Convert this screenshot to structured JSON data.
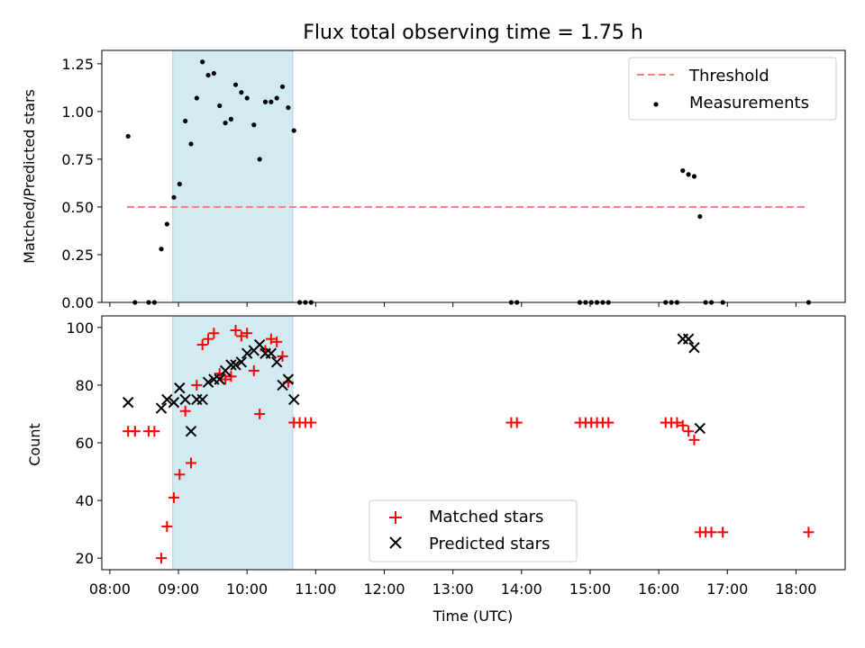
{
  "title": "Flux total observing time = 1.75 h",
  "xlabel": "Time (UTC)",
  "x_ticks": [
    "08:00",
    "09:00",
    "10:00",
    "11:00",
    "12:00",
    "13:00",
    "14:00",
    "15:00",
    "16:00",
    "17:00",
    "18:00"
  ],
  "chart_data": [
    {
      "type": "scatter",
      "ylabel": "Matched/Predicted stars",
      "xlim": [
        "07:53",
        "18:43"
      ],
      "ylim": [
        0,
        1.32
      ],
      "y_ticks": [
        "0.00",
        "0.25",
        "0.50",
        "0.75",
        "1.00",
        "1.25"
      ],
      "legend": {
        "placement": "top-right",
        "entries": [
          "Threshold",
          "Measurements"
        ]
      },
      "shaded_region": {
        "x": [
          "08:55",
          "10:40"
        ],
        "color": "#add8e6"
      },
      "threshold": {
        "name": "Threshold",
        "y": 0.5,
        "x": [
          "08:15",
          "18:10"
        ],
        "color": "#ff7f7f"
      },
      "series": [
        {
          "name": "Measurements",
          "color": "#000000",
          "points": [
            [
              "08:16",
              0.87
            ],
            [
              "08:22",
              0.0
            ],
            [
              "08:34",
              0.0
            ],
            [
              "08:39",
              0.0
            ],
            [
              "08:45",
              0.28
            ],
            [
              "08:50",
              0.41
            ],
            [
              "08:56",
              0.55
            ],
            [
              "09:01",
              0.62
            ],
            [
              "09:06",
              0.95
            ],
            [
              "09:11",
              0.83
            ],
            [
              "09:16",
              1.07
            ],
            [
              "09:21",
              1.26
            ],
            [
              "09:26",
              1.19
            ],
            [
              "09:31",
              1.2
            ],
            [
              "09:36",
              1.03
            ],
            [
              "09:41",
              0.94
            ],
            [
              "09:46",
              0.96
            ],
            [
              "09:50",
              1.14
            ],
            [
              "09:55",
              1.1
            ],
            [
              "10:00",
              1.07
            ],
            [
              "10:06",
              0.93
            ],
            [
              "10:11",
              0.75
            ],
            [
              "10:16",
              1.05
            ],
            [
              "10:21",
              1.05
            ],
            [
              "10:26",
              1.07
            ],
            [
              "10:31",
              1.13
            ],
            [
              "10:36",
              1.02
            ],
            [
              "10:41",
              0.9
            ],
            [
              "10:46",
              0.0
            ],
            [
              "10:51",
              0.0
            ],
            [
              "10:56",
              0.0
            ],
            [
              "13:51",
              0.0
            ],
            [
              "13:56",
              0.0
            ],
            [
              "14:51",
              0.0
            ],
            [
              "14:56",
              0.0
            ],
            [
              "15:01",
              0.0
            ],
            [
              "15:06",
              0.0
            ],
            [
              "15:11",
              0.0
            ],
            [
              "15:16",
              0.0
            ],
            [
              "16:06",
              0.0
            ],
            [
              "16:11",
              0.0
            ],
            [
              "16:16",
              0.0
            ],
            [
              "16:21",
              0.69
            ],
            [
              "16:26",
              0.67
            ],
            [
              "16:31",
              0.66
            ],
            [
              "16:36",
              0.45
            ],
            [
              "16:41",
              0.0
            ],
            [
              "16:46",
              0.0
            ],
            [
              "16:56",
              0.0
            ],
            [
              "18:11",
              0.0
            ]
          ]
        }
      ]
    },
    {
      "type": "scatter",
      "ylabel": "Count",
      "xlim": [
        "07:53",
        "18:43"
      ],
      "ylim": [
        16,
        104
      ],
      "y_ticks": [
        "20",
        "40",
        "60",
        "80",
        "100"
      ],
      "legend": {
        "placement": "lower-center",
        "entries": [
          "Matched stars",
          "Predicted stars"
        ]
      },
      "shaded_region": {
        "x": [
          "08:55",
          "10:40"
        ],
        "color": "#add8e6"
      },
      "series": [
        {
          "name": "Matched stars",
          "marker": "plus",
          "color": "#ff0000",
          "points": [
            [
              "08:16",
              64
            ],
            [
              "08:22",
              64
            ],
            [
              "08:34",
              64
            ],
            [
              "08:39",
              64
            ],
            [
              "08:45",
              20
            ],
            [
              "08:50",
              31
            ],
            [
              "08:56",
              41
            ],
            [
              "09:01",
              49
            ],
            [
              "09:06",
              71
            ],
            [
              "09:11",
              53
            ],
            [
              "09:16",
              80
            ],
            [
              "09:21",
              94
            ],
            [
              "09:26",
              96
            ],
            [
              "09:31",
              98
            ],
            [
              "09:36",
              84
            ],
            [
              "09:41",
              82
            ],
            [
              "09:46",
              83
            ],
            [
              "09:50",
              99
            ],
            [
              "09:55",
              97
            ],
            [
              "10:00",
              98
            ],
            [
              "10:06",
              85
            ],
            [
              "10:11",
              70
            ],
            [
              "10:16",
              92
            ],
            [
              "10:21",
              96
            ],
            [
              "10:26",
              95
            ],
            [
              "10:31",
              90
            ],
            [
              "10:36",
              81
            ],
            [
              "10:41",
              67
            ],
            [
              "10:46",
              67
            ],
            [
              "10:51",
              67
            ],
            [
              "10:56",
              67
            ],
            [
              "13:51",
              67
            ],
            [
              "13:56",
              67
            ],
            [
              "14:51",
              67
            ],
            [
              "14:56",
              67
            ],
            [
              "15:01",
              67
            ],
            [
              "15:06",
              67
            ],
            [
              "15:11",
              67
            ],
            [
              "15:16",
              67
            ],
            [
              "16:06",
              67
            ],
            [
              "16:11",
              67
            ],
            [
              "16:16",
              67
            ],
            [
              "16:21",
              66
            ],
            [
              "16:26",
              64
            ],
            [
              "16:31",
              61
            ],
            [
              "16:36",
              29
            ],
            [
              "16:41",
              29
            ],
            [
              "16:46",
              29
            ],
            [
              "16:56",
              29
            ],
            [
              "18:11",
              29
            ]
          ]
        },
        {
          "name": "Predicted stars",
          "marker": "x",
          "color": "#000000",
          "points": [
            [
              "08:16",
              74
            ],
            [
              "08:45",
              72
            ],
            [
              "08:50",
              75
            ],
            [
              "08:56",
              74
            ],
            [
              "09:01",
              79
            ],
            [
              "09:06",
              75
            ],
            [
              "09:11",
              64
            ],
            [
              "09:16",
              75
            ],
            [
              "09:21",
              75
            ],
            [
              "09:26",
              81
            ],
            [
              "09:31",
              82
            ],
            [
              "09:36",
              82
            ],
            [
              "09:41",
              85
            ],
            [
              "09:46",
              87
            ],
            [
              "09:50",
              87
            ],
            [
              "09:55",
              88
            ],
            [
              "10:00",
              91
            ],
            [
              "10:06",
              92
            ],
            [
              "10:11",
              94
            ],
            [
              "10:16",
              91
            ],
            [
              "10:21",
              91
            ],
            [
              "10:26",
              88
            ],
            [
              "10:31",
              80
            ],
            [
              "10:36",
              82
            ],
            [
              "10:41",
              75
            ],
            [
              "16:21",
              96
            ],
            [
              "16:26",
              96
            ],
            [
              "16:31",
              93
            ],
            [
              "16:36",
              65
            ]
          ]
        }
      ]
    }
  ]
}
